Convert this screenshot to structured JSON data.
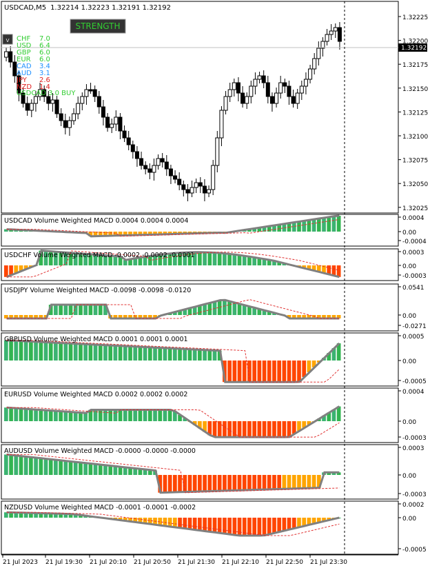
{
  "header": {
    "symbol": "USDCAD,M5",
    "ohlc": "1.32214  1.32223  1.32191  1.32192"
  },
  "strength_button": {
    "label": "STRENGTH"
  },
  "menu_icon": {
    "label": "v"
  },
  "strength": [
    {
      "cur": "CHF",
      "val": "7.0",
      "color": "#32cd32"
    },
    {
      "cur": "USD",
      "val": "6.4",
      "color": "#32cd32"
    },
    {
      "cur": "GBP",
      "val": "6.0",
      "color": "#32cd32"
    },
    {
      "cur": "EUR",
      "val": "6.0",
      "color": "#32cd32"
    },
    {
      "cur": "CAD",
      "val": "3.4",
      "color": "#1e90ff"
    },
    {
      "cur": "AUD",
      "val": "3.1",
      "color": "#1e90ff"
    },
    {
      "cur": "JPY",
      "val": "2.6",
      "color": "#e02020"
    },
    {
      "cur": "NZD",
      "val": "1.4",
      "color": "#e02020"
    }
  ],
  "signal": {
    "text": "USDCAD 3.0 BUY",
    "color": "#32cd32"
  },
  "price_axis": {
    "labels": [
      "1.32225",
      "1.32200",
      "1.32175",
      "1.32150",
      "1.32125",
      "1.32100",
      "1.32075",
      "1.32050",
      "1.32025"
    ],
    "current": "1.32192"
  },
  "indicators": [
    {
      "title": "USDCAD Volume Weighted MACD 0.0004 0.0004 0.0004",
      "labels": [
        "0.0004",
        "0.00",
        "-0.0004"
      ]
    },
    {
      "title": "USDCHF Volume Weighted MACD -0.0002 -0.0002 -0.0001",
      "labels": [
        "0.0003",
        "0.00",
        "-0.0003"
      ]
    },
    {
      "title": "USDJPY Volume Weighted MACD -0.0098 -0.0098 -0.0120",
      "labels": [
        "0.0541",
        "0.00",
        "-0.0271"
      ]
    },
    {
      "title": "GBPUSD Volume Weighted MACD 0.0001 0.0001 0.0001",
      "labels": [
        "0.0005",
        "0.00",
        "-0.0005"
      ]
    },
    {
      "title": "EURUSD Volume Weighted MACD 0.0002 0.0002 0.0002",
      "labels": [
        "0.0004",
        "0.00",
        "-0.0003"
      ]
    },
    {
      "title": "AUDUSD Volume Weighted MACD -0.0000 -0.0000 -0.0000",
      "labels": [
        "0.0003",
        "0.00",
        "-0.0003"
      ]
    },
    {
      "title": "NZDUSD Volume Weighted MACD -0.0001 -0.0001 -0.0002",
      "labels": [
        "0.0002",
        "0.00",
        "-0.0005"
      ]
    }
  ],
  "time_axis": [
    "21 Jul 2023",
    "21 Jul 19:30",
    "21 Jul 20:10",
    "21 Jul 20:50",
    "21 Jul 21:30",
    "21 Jul 22:10",
    "21 Jul 22:50",
    "21 Jul 23:30"
  ]
}
